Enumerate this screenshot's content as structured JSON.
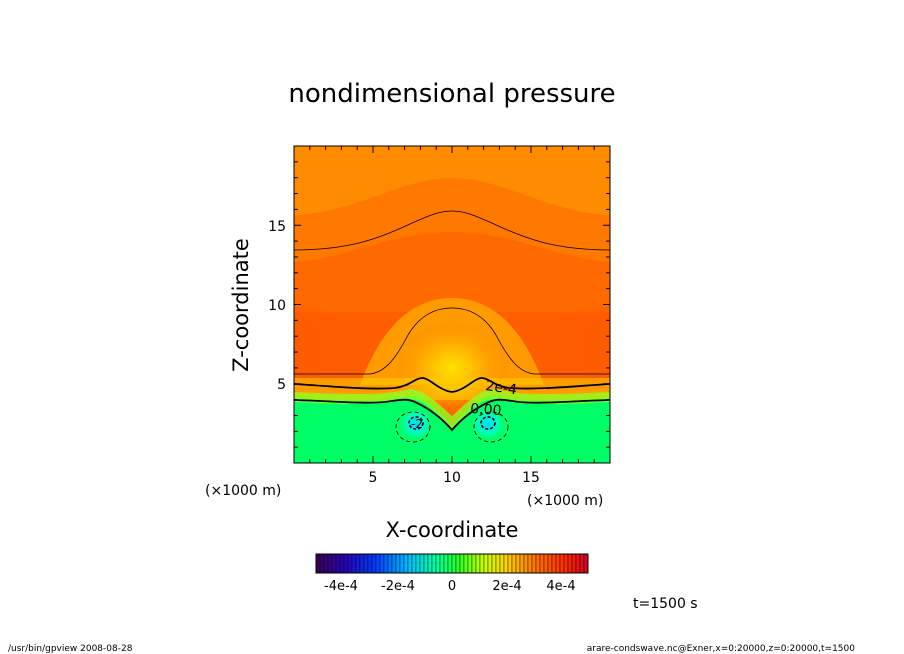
{
  "chart_data": {
    "type": "heatmap",
    "title": "nondimensional pressure",
    "xlabel": "X-coordinate",
    "ylabel": "Z-coordinate",
    "x_unit": "(×1000 m)",
    "y_unit": "(×1000 m)",
    "xlim": [
      0,
      20
    ],
    "ylim": [
      0,
      20
    ],
    "x_ticks": [
      "5",
      "10",
      "15"
    ],
    "y_ticks": [
      "5",
      "10",
      "15"
    ],
    "contour_labels": [
      "2e-4",
      "0.00",
      "-2"
    ],
    "colorbar": {
      "tick_labels": [
        "-4e-4",
        "-2e-4",
        "0",
        "2e-4",
        "4e-4"
      ],
      "range": [
        -0.0005,
        0.0005
      ]
    },
    "time_label": "t=1500 s",
    "grid": false
  },
  "footer": {
    "left": "/usr/bin/gpview   2008-08-28",
    "right": "arare-condswave.nc@Exner,x=0:20000,z=0:20000,t=1500"
  }
}
